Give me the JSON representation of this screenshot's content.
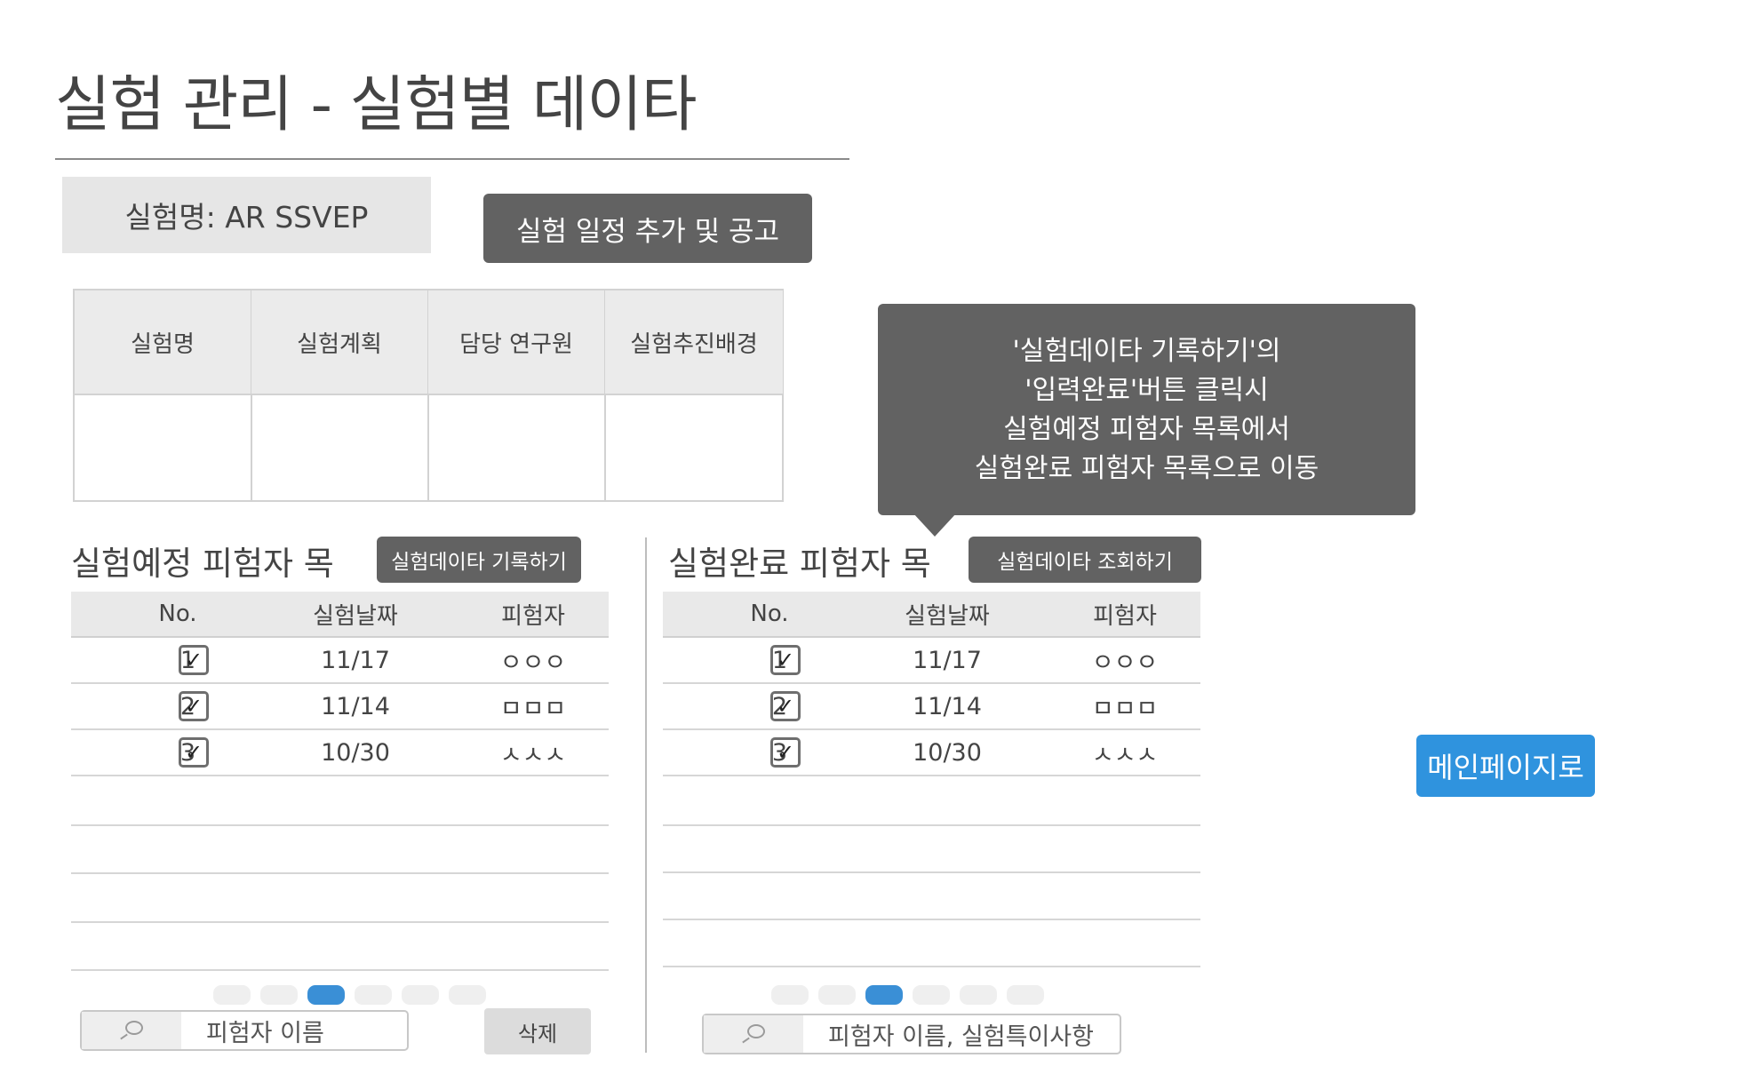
{
  "page": {
    "title": "실험 관리 - 실험별 데이타",
    "experiment_name": "실험명: AR SSVEP",
    "add_schedule_button": "실험 일정 추가 및 공고"
  },
  "info_table": {
    "headers": [
      "실험명",
      "실험계획",
      "담당 연구원",
      "실험추진배경"
    ]
  },
  "callout": {
    "lines": [
      "'실험데이타 기록하기'의",
      "'입력완료'버튼 클릭시",
      "실험예정 피험자 목록에서",
      "실험완료 피험자 목록으로 이동"
    ]
  },
  "scheduled": {
    "title": "실험예정 피험자 목",
    "record_button": "실험데이타 기록하기",
    "columns": [
      "No.",
      "실험날짜",
      "피험자"
    ],
    "rows": [
      {
        "no": "1",
        "date": "11/17",
        "subject": "ㅇㅇㅇ",
        "checked": true
      },
      {
        "no": "2",
        "date": "11/14",
        "subject": "ㅁㅁㅁ",
        "checked": true
      },
      {
        "no": "3",
        "date": "10/30",
        "subject": "ㅅㅅㅅ",
        "checked": true
      }
    ],
    "pages": 6,
    "active_page": 3,
    "search_placeholder": "피험자 이름",
    "delete_button": "삭제"
  },
  "completed": {
    "title": "실험완료 피험자 목",
    "view_button": "실험데이타 조회하기",
    "columns": [
      "No.",
      "실험날짜",
      "피험자"
    ],
    "rows": [
      {
        "no": "1",
        "date": "11/17",
        "subject": "ㅇㅇㅇ",
        "checked": true
      },
      {
        "no": "2",
        "date": "11/14",
        "subject": "ㅁㅁㅁ",
        "checked": true
      },
      {
        "no": "3",
        "date": "10/30",
        "subject": "ㅅㅅㅅ",
        "checked": true
      }
    ],
    "pages": 6,
    "active_page": 3,
    "search_placeholder": "피험자 이름, 실험특이사항"
  },
  "main_page_button": "메인페이지로",
  "colors": {
    "dark_button": "#626262",
    "accent_blue": "#2f93de",
    "header_gray": "#e9e9e9"
  },
  "icons": {
    "checkbox": "check-icon",
    "search": "magnifier-icon"
  }
}
